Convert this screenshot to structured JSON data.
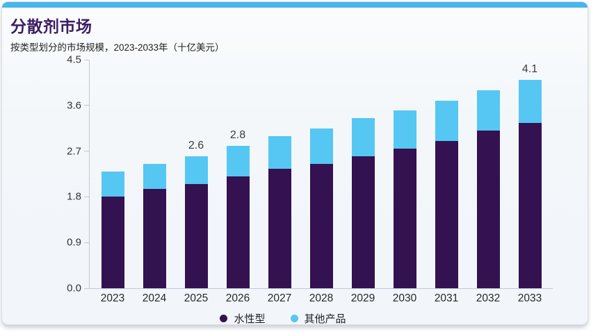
{
  "header": {
    "title": "分散剂市场",
    "subtitle": "按类型划分的市场规模，2023-2033年（十亿美元）"
  },
  "theme": {
    "accent_color": "#48b7e9",
    "card_background": "#f4f8fb",
    "title_color": "#3b1d63",
    "axis_color": "#c3c9d0",
    "tick_label_color": "#333333",
    "data_label_color": "#3a3a3a"
  },
  "chart_data": {
    "type": "bar",
    "stacked": true,
    "grid": false,
    "legend_position": "bottom",
    "categories": [
      "2023",
      "2024",
      "2025",
      "2026",
      "2027",
      "2028",
      "2029",
      "2030",
      "2031",
      "2032",
      "2033"
    ],
    "series": [
      {
        "name": "水性型",
        "color": "#341150",
        "values": [
          1.8,
          1.95,
          2.05,
          2.2,
          2.35,
          2.45,
          2.6,
          2.75,
          2.9,
          3.1,
          3.25
        ]
      },
      {
        "name": "其他产品",
        "color": "#55c7f2",
        "values": [
          0.5,
          0.5,
          0.55,
          0.6,
          0.65,
          0.7,
          0.75,
          0.75,
          0.8,
          0.8,
          0.85
        ]
      }
    ],
    "totals": [
      2.3,
      2.45,
      2.6,
      2.8,
      3.0,
      3.15,
      3.35,
      3.5,
      3.7,
      3.9,
      4.1
    ],
    "total_labels": [
      "",
      "",
      "2.6",
      "2.8",
      "",
      "",
      "",
      "",
      "",
      "",
      "4.1"
    ],
    "y_ticks": [
      "0.0",
      "0.9",
      "1.8",
      "2.7",
      "3.6",
      "4.5"
    ],
    "ylim": [
      0,
      4.5
    ],
    "xlabel": "",
    "ylabel": ""
  }
}
